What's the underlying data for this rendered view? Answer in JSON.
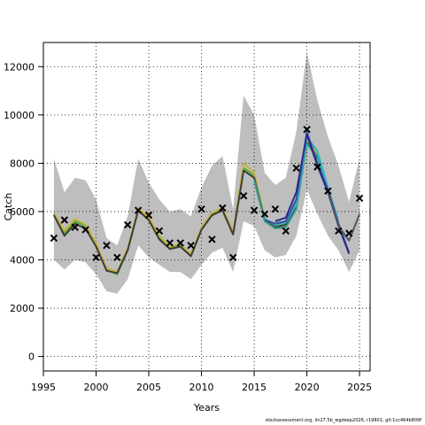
{
  "chart_data": {
    "type": "line",
    "xlabel": "Years",
    "ylabel": "Catch",
    "xlim": [
      1995,
      2026
    ],
    "ylim": [
      -600,
      13000
    ],
    "x_ticks": [
      1995,
      2000,
      2005,
      2010,
      2015,
      2020,
      2025
    ],
    "x_tick_labels": [
      "1995",
      "2000",
      "2005",
      "2010",
      "2015",
      "2020",
      "2025"
    ],
    "y_ticks": [
      0,
      2000,
      4000,
      6000,
      8000,
      10000,
      12000
    ],
    "y_tick_labels": [
      "0",
      "2000",
      "4000",
      "6000",
      "8000",
      "10000",
      "12000"
    ],
    "grid": true,
    "grid_style": "dotted",
    "band": {
      "color": "#bebebe",
      "x": [
        1996,
        1997,
        1998,
        1999,
        2000,
        2001,
        2002,
        2003,
        2004,
        2005,
        2006,
        2007,
        2008,
        2009,
        2010,
        2011,
        2012,
        2013,
        2014,
        2015,
        2016,
        2017,
        2018,
        2019,
        2020,
        2021,
        2022,
        2023,
        2024,
        2025
      ],
      "upper": [
        8200,
        6800,
        7400,
        7300,
        6500,
        4900,
        4600,
        5800,
        8200,
        7200,
        6500,
        6000,
        6100,
        5800,
        7000,
        7900,
        8300,
        6100,
        10800,
        10000,
        7600,
        7100,
        7400,
        9300,
        12600,
        10600,
        9100,
        7900,
        6400,
        8200
      ],
      "lower": [
        4000,
        3600,
        4000,
        3900,
        3400,
        2700,
        2600,
        3200,
        4600,
        4100,
        3800,
        3500,
        3500,
        3200,
        3800,
        4300,
        4500,
        3500,
        5600,
        5400,
        4400,
        4100,
        4200,
        5000,
        6900,
        5900,
        5000,
        4400,
        3500,
        4400
      ]
    },
    "series": [
      {
        "color": "#4cae3f",
        "x": [
          1996,
          1997,
          1998,
          1999,
          2000,
          2001,
          2002,
          2003,
          2004,
          2005,
          2006,
          2007,
          2008,
          2009,
          2010,
          2011,
          2012,
          2013,
          2014,
          2015,
          2016,
          2017,
          2018,
          2019,
          2020,
          2021,
          2022
        ],
        "values": [
          5900,
          5100,
          5600,
          5400,
          4600,
          3600,
          3400,
          4400,
          6100,
          5700,
          4900,
          4500,
          4600,
          4200,
          5300,
          5900,
          6100,
          5100,
          7800,
          7500,
          5700,
          5400,
          5500,
          6300,
          8900,
          8300,
          6900
        ]
      },
      {
        "color": "#c9b33a",
        "x": [
          1996,
          1997,
          1998,
          1999,
          2000,
          2001,
          2002,
          2003,
          2004,
          2005,
          2006,
          2007,
          2008,
          2009,
          2010,
          2011,
          2012,
          2013,
          2014,
          2015,
          2016,
          2017,
          2018,
          2019,
          2020,
          2021
        ],
        "values": [
          5950,
          5200,
          5700,
          5450,
          4700,
          3650,
          3500,
          4500,
          6150,
          5750,
          5000,
          4550,
          4650,
          4250,
          5350,
          5950,
          6150,
          5150,
          8000,
          7600,
          5700,
          5450,
          5600,
          6400,
          9000,
          8400
        ]
      },
      {
        "color": "#3c3c3c",
        "x": [
          1996,
          1997,
          1998,
          1999,
          2000,
          2001,
          2002,
          2003,
          2004,
          2005,
          2006,
          2007,
          2008,
          2009,
          2010,
          2011,
          2012,
          2013,
          2014,
          2015,
          2016,
          2017,
          2018,
          2019,
          2020,
          2021
        ],
        "values": [
          5850,
          5000,
          5500,
          5300,
          4550,
          3550,
          3450,
          4400,
          6050,
          5650,
          4850,
          4450,
          4550,
          4150,
          5250,
          5850,
          6050,
          5050,
          7700,
          7400,
          5650,
          5350,
          5450,
          6250,
          8850,
          8200
        ]
      },
      {
        "color": "#2f9e8f",
        "x": [
          2015,
          2016,
          2017,
          2018,
          2019,
          2020,
          2021,
          2022
        ],
        "values": [
          7300,
          5600,
          5300,
          5350,
          6100,
          8800,
          8300,
          6900
        ]
      },
      {
        "color": "#33b6c8",
        "x": [
          2016,
          2017,
          2018,
          2019,
          2020,
          2021,
          2022,
          2023
        ],
        "values": [
          5700,
          5450,
          5550,
          6300,
          9100,
          8500,
          7000,
          5600
        ]
      },
      {
        "color": "#3a4fa0",
        "x": [
          2016,
          2017,
          2018,
          2019,
          2020,
          2021,
          2022,
          2023,
          2024
        ],
        "values": [
          5650,
          5500,
          5600,
          6500,
          9300,
          8000,
          6900,
          5500,
          4300
        ]
      },
      {
        "color": "#2b2a8e",
        "x": [
          2017,
          2018,
          2019,
          2020,
          2021,
          2022,
          2023,
          2024
        ],
        "values": [
          5600,
          5750,
          6800,
          9200,
          7900,
          6800,
          5400,
          4250
        ]
      },
      {
        "color": "#555555",
        "x": [
          2022,
          2023,
          2024,
          2025
        ],
        "values": [
          6900,
          5400,
          4800,
          5900
        ]
      }
    ],
    "observations": {
      "marker": "x",
      "x": [
        1996,
        1997,
        1998,
        1999,
        2000,
        2001,
        2002,
        2003,
        2004,
        2005,
        2006,
        2007,
        2008,
        2009,
        2010,
        2011,
        2012,
        2013,
        2014,
        2015,
        2016,
        2017,
        2018,
        2019,
        2020,
        2021,
        2022,
        2023,
        2024,
        2025
      ],
      "values": [
        4900,
        5650,
        5350,
        5250,
        4100,
        4600,
        4100,
        5450,
        6050,
        5850,
        5200,
        4700,
        4700,
        4600,
        6100,
        4850,
        6150,
        4100,
        6650,
        6050,
        5900,
        6100,
        5200,
        7800,
        9400,
        7850,
        6850,
        5200,
        5100,
        6550
      ]
    }
  },
  "footer": {
    "text": "stockassessment.org, lin27.5b_wgdeep2026, r19801, git:1cc464b809f"
  }
}
